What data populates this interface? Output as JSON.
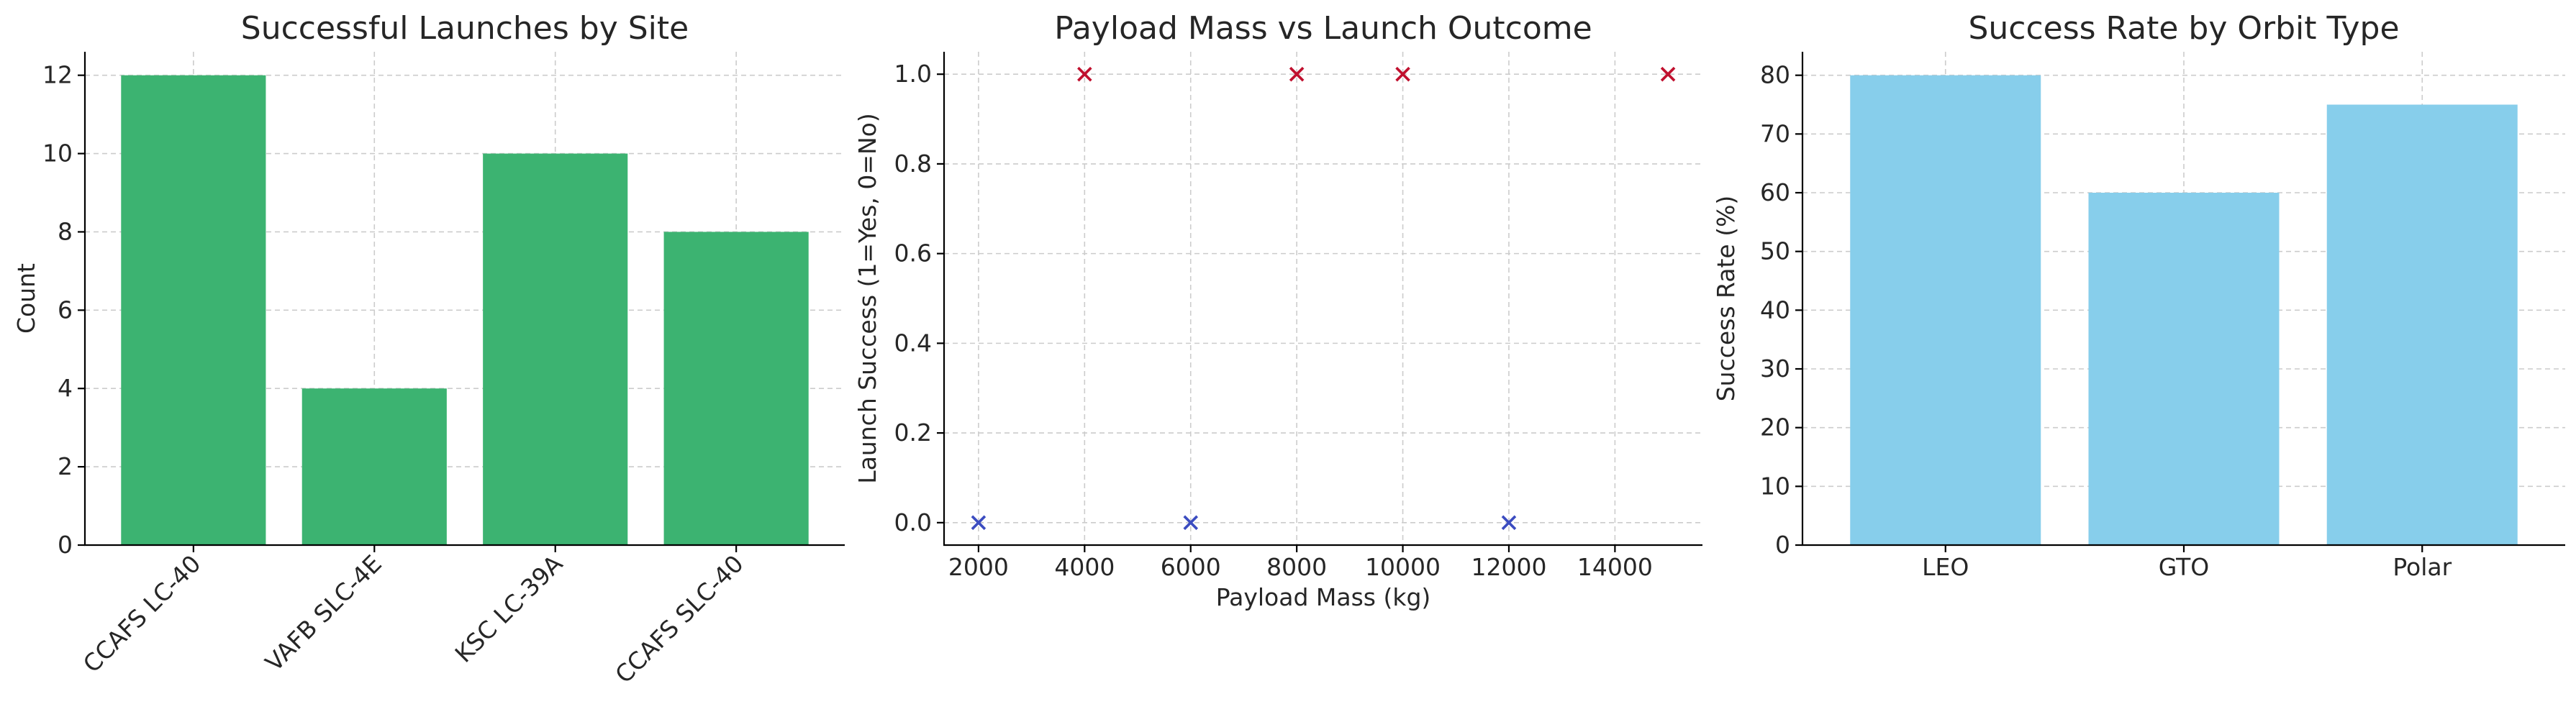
{
  "chart_data": [
    {
      "type": "bar",
      "title": "Successful Launches by Site",
      "xlabel": "",
      "ylabel": "Count",
      "categories": [
        "CCAFS LC-40",
        "VAFB SLC-4E",
        "KSC LC-39A",
        "CCAFS SLC-40"
      ],
      "values": [
        12,
        4,
        10,
        8
      ],
      "ylim": [
        0,
        12.6
      ],
      "yticks": [
        0,
        2,
        4,
        6,
        8,
        10,
        12
      ],
      "color": "#3cb371",
      "grid": true,
      "xtick_rotation": 45
    },
    {
      "type": "scatter",
      "title": "Payload Mass vs Launch Outcome",
      "xlabel": "Payload Mass (kg)",
      "ylabel": "Launch Success (1=Yes, 0=No)",
      "xlim": [
        1350,
        15650
      ],
      "ylim": [
        -0.05,
        1.05
      ],
      "xticks": [
        2000,
        4000,
        6000,
        8000,
        10000,
        12000,
        14000
      ],
      "yticks": [
        0.0,
        0.2,
        0.4,
        0.6,
        0.8,
        1.0
      ],
      "marker": "x",
      "points": [
        {
          "x": 2000,
          "y": 0,
          "color": "#3b4cc0"
        },
        {
          "x": 4000,
          "y": 1,
          "color": "#c0102e"
        },
        {
          "x": 6000,
          "y": 0,
          "color": "#3b4cc0"
        },
        {
          "x": 8000,
          "y": 1,
          "color": "#c0102e"
        },
        {
          "x": 10000,
          "y": 1,
          "color": "#c0102e"
        },
        {
          "x": 12000,
          "y": 0,
          "color": "#3b4cc0"
        },
        {
          "x": 15000,
          "y": 1,
          "color": "#c0102e"
        }
      ],
      "grid": true
    },
    {
      "type": "bar",
      "title": "Success Rate by Orbit Type",
      "xlabel": "",
      "ylabel": "Success Rate (%)",
      "categories": [
        "LEO",
        "GTO",
        "Polar"
      ],
      "values": [
        80,
        60,
        75
      ],
      "ylim": [
        0,
        84
      ],
      "yticks": [
        0,
        10,
        20,
        30,
        40,
        50,
        60,
        70,
        80
      ],
      "color": "#87ceeb",
      "grid": true,
      "xtick_rotation": 0
    }
  ]
}
